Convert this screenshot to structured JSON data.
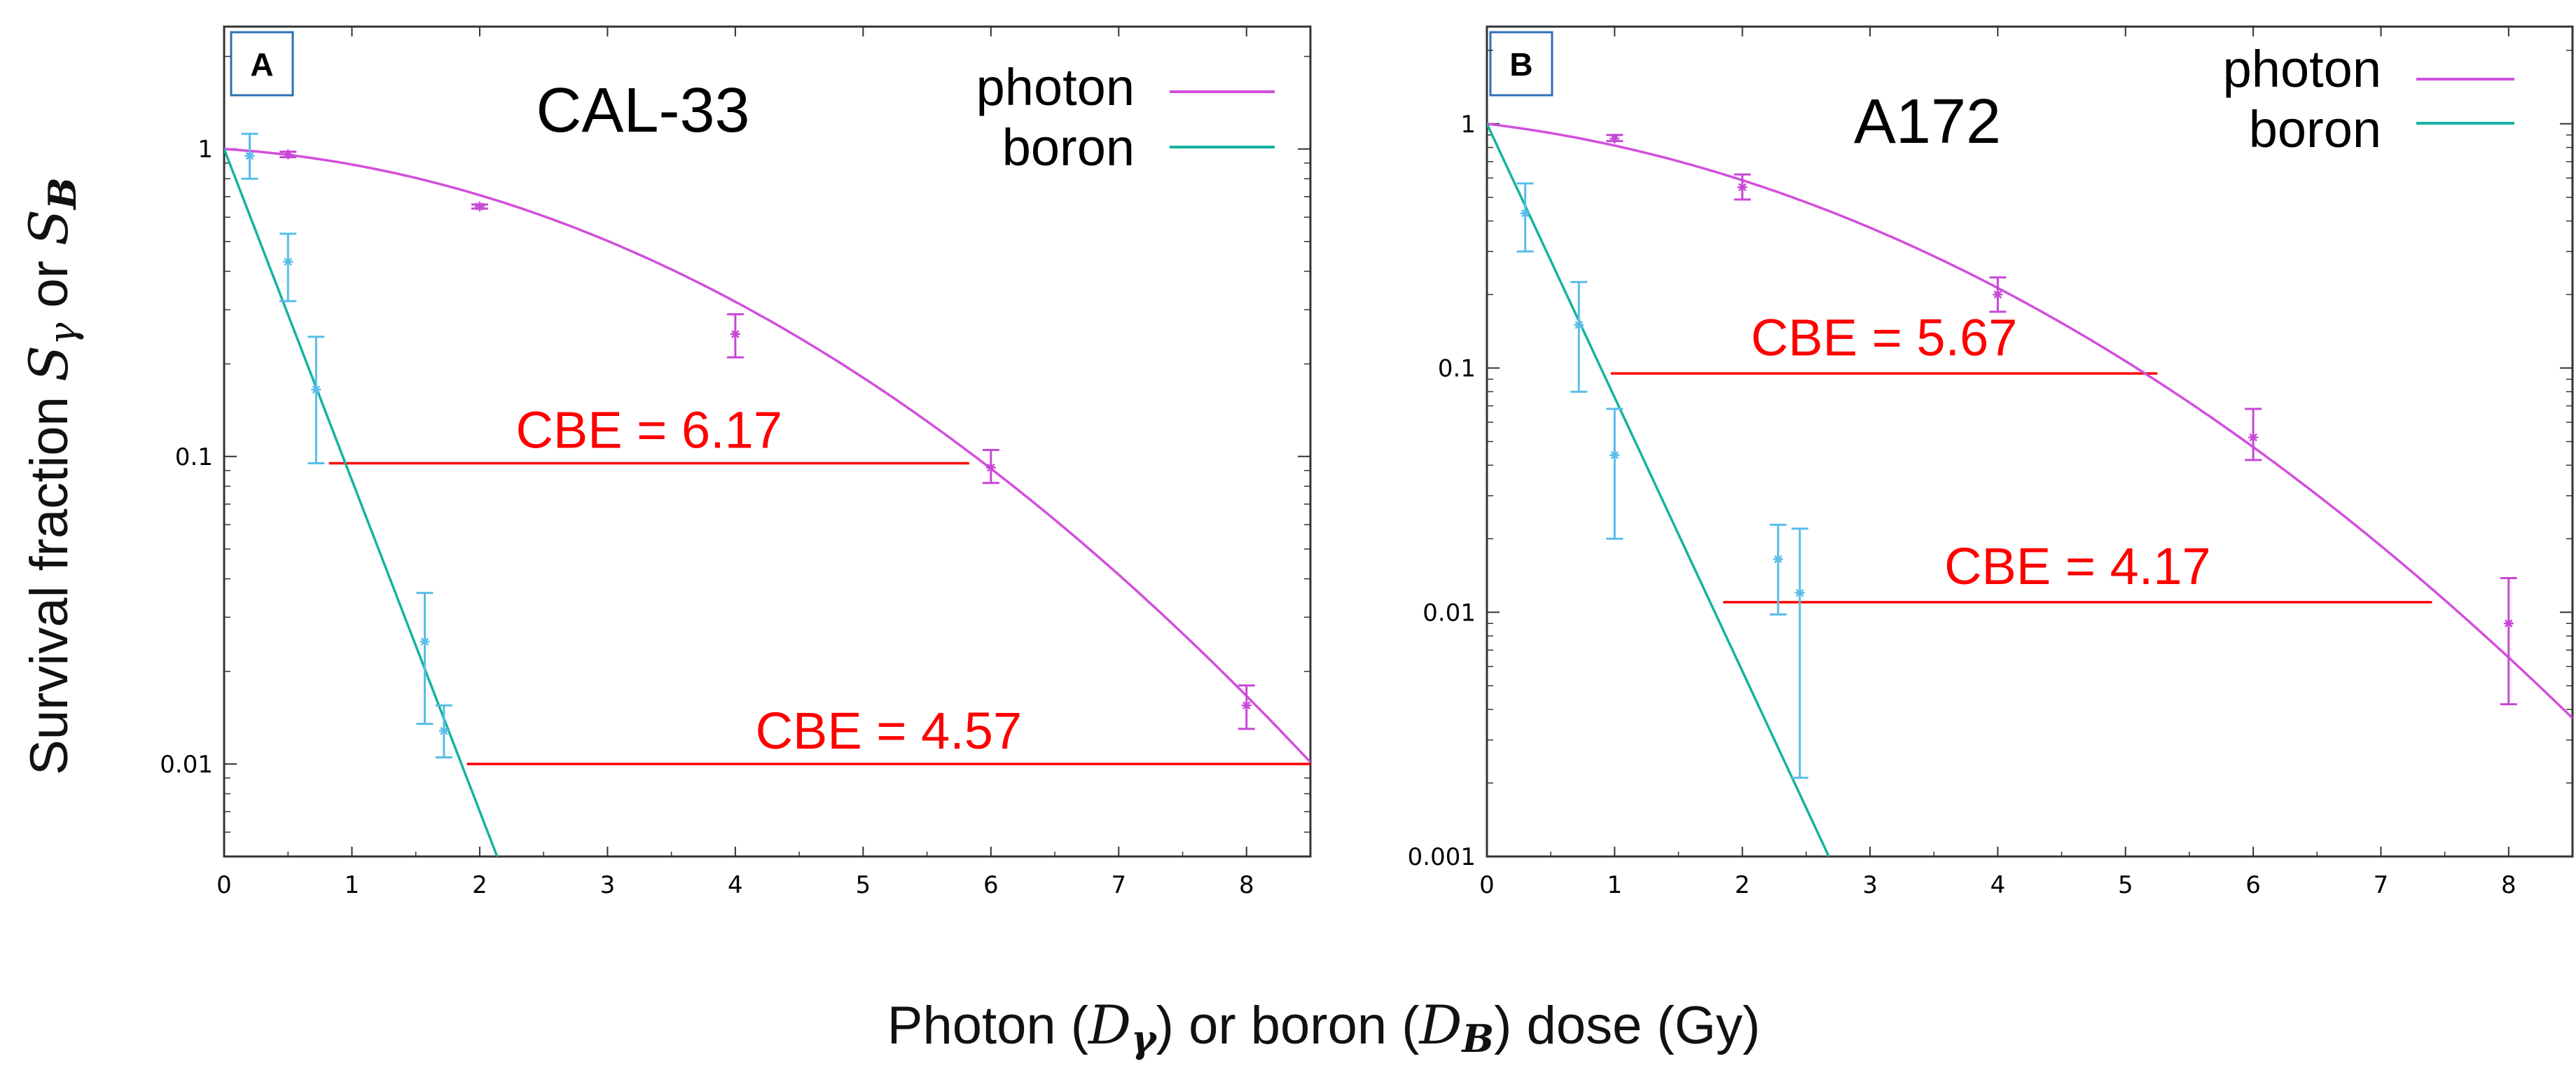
{
  "figure": {
    "ylabel": {
      "prefix": "Survival fraction ",
      "s": "S",
      "gamma": "γ",
      "or": " or ",
      "s2": "S",
      "b": "B"
    },
    "xlabel": {
      "part1": "Photon (",
      "d1": "D",
      "gamma": "γ",
      "part2": ") or boron (",
      "d2": "D",
      "b": "B",
      "part3": ") dose (Gy)"
    },
    "colors": {
      "photon": "#d24fdc",
      "boron": "#16b3a1",
      "error_photon": "#c847d6",
      "error_boron": "#59bde8",
      "cbe_line": "#ff0000",
      "badge_border": "#2f6fb6"
    }
  },
  "chart_data": [
    {
      "type": "line",
      "panel": "A",
      "title": "CAL-33",
      "yscale": "log",
      "xlim": [
        0,
        8.5
      ],
      "ylim": [
        0.005,
        2.5
      ],
      "xticks": [
        "0",
        "1",
        "2",
        "3",
        "4",
        "5",
        "6",
        "7",
        "8"
      ],
      "yticks": [
        "0.01",
        "0.1",
        "1"
      ],
      "legend": {
        "position": "top-right",
        "entries": [
          "photon",
          "boron"
        ]
      },
      "series": [
        {
          "name": "photon",
          "curve": {
            "alpha": 0.06,
            "beta": 0.0565,
            "x": [
              0,
              8.5
            ]
          },
          "points": [
            {
              "x": 0.5,
              "y": 0.96,
              "lo": 0.94,
              "hi": 0.98
            },
            {
              "x": 2,
              "y": 0.65,
              "lo": 0.64,
              "hi": 0.66
            },
            {
              "x": 4,
              "y": 0.25,
              "lo": 0.21,
              "hi": 0.29
            },
            {
              "x": 6,
              "y": 0.092,
              "lo": 0.082,
              "hi": 0.105
            },
            {
              "x": 8,
              "y": 0.0155,
              "lo": 0.013,
              "hi": 0.018
            }
          ]
        },
        {
          "name": "boron",
          "curve": {
            "alpha": 2.48,
            "beta": 0,
            "x": [
              0,
              2.2
            ]
          },
          "points": [
            {
              "x": 0.2,
              "y": 0.95,
              "lo": 0.8,
              "hi": 1.12
            },
            {
              "x": 0.5,
              "y": 0.43,
              "lo": 0.32,
              "hi": 0.53
            },
            {
              "x": 0.72,
              "y": 0.165,
              "lo": 0.095,
              "hi": 0.245
            },
            {
              "x": 1.57,
              "y": 0.025,
              "lo": 0.0135,
              "hi": 0.036
            },
            {
              "x": 1.72,
              "y": 0.0128,
              "lo": 0.0105,
              "hi": 0.0155
            }
          ]
        }
      ],
      "cbe": [
        {
          "label": "CBE = 6.17",
          "y": 0.095,
          "x1": 0.82,
          "x2": 5.83
        },
        {
          "label": "CBE = 4.57",
          "y": 0.01,
          "x1": 1.9,
          "x2": 8.5
        }
      ]
    },
    {
      "type": "line",
      "panel": "B",
      "title": "A172",
      "yscale": "log",
      "xlim": [
        0,
        8.5
      ],
      "ylim": [
        0.001,
        2.5
      ],
      "xticks": [
        "0",
        "1",
        "2",
        "3",
        "4",
        "5",
        "6",
        "7",
        "8"
      ],
      "yticks": [
        "0.001",
        "0.01",
        "0.1",
        "1"
      ],
      "legend": {
        "position": "top-right",
        "entries": [
          "photon",
          "boron"
        ]
      },
      "series": [
        {
          "name": "photon",
          "curve": {
            "alpha": 0.145,
            "beta": 0.0605,
            "x": [
              0,
              8.5
            ]
          },
          "points": [
            {
              "x": 1,
              "y": 0.87,
              "lo": 0.85,
              "hi": 0.9
            },
            {
              "x": 2,
              "y": 0.55,
              "lo": 0.49,
              "hi": 0.62
            },
            {
              "x": 4,
              "y": 0.2,
              "lo": 0.17,
              "hi": 0.235
            },
            {
              "x": 6,
              "y": 0.052,
              "lo": 0.042,
              "hi": 0.068
            },
            {
              "x": 8,
              "y": 0.009,
              "lo": 0.0042,
              "hi": 0.0138
            }
          ]
        },
        {
          "name": "boron",
          "curve": {
            "alpha": 2.58,
            "beta": 0,
            "x": [
              0,
              2.8
            ]
          },
          "points": [
            {
              "x": 0.3,
              "y": 0.43,
              "lo": 0.3,
              "hi": 0.57
            },
            {
              "x": 0.72,
              "y": 0.15,
              "lo": 0.08,
              "hi": 0.225
            },
            {
              "x": 1,
              "y": 0.044,
              "lo": 0.02,
              "hi": 0.068
            },
            {
              "x": 2.28,
              "y": 0.0165,
              "lo": 0.0098,
              "hi": 0.0228
            },
            {
              "x": 2.45,
              "y": 0.012,
              "lo": 0.0021,
              "hi": 0.022
            }
          ]
        }
      ],
      "cbe": [
        {
          "label": "CBE = 5.67",
          "y": 0.095,
          "x1": 0.97,
          "x2": 5.25
        },
        {
          "label": "CBE = 4.17",
          "y": 0.011,
          "x1": 1.85,
          "x2": 7.4
        }
      ]
    }
  ]
}
